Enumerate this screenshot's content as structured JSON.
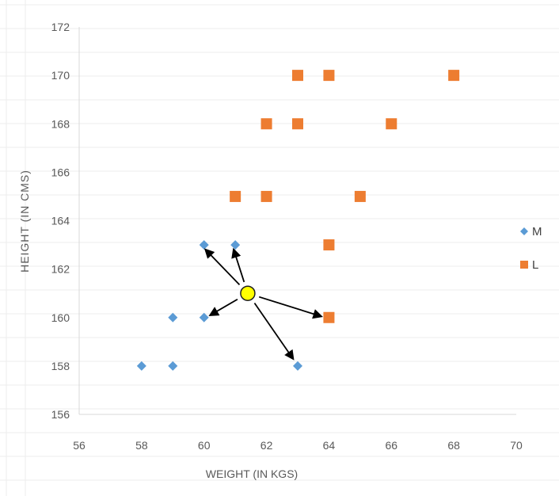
{
  "chart_data": {
    "type": "scatter",
    "title": "",
    "xlabel": "WEIGHT (IN KGS)",
    "ylabel": "HEIGHT (IN CMS)",
    "xlim": [
      56,
      70
    ],
    "ylim": [
      156,
      172
    ],
    "x_ticks": [
      56,
      58,
      60,
      62,
      64,
      66,
      68,
      70
    ],
    "y_ticks": [
      156,
      158,
      160,
      162,
      164,
      166,
      168,
      170,
      172
    ],
    "grid": false,
    "legend_position": "right",
    "series": [
      {
        "name": "M",
        "marker": "diamond",
        "color": "#5B9BD5",
        "points": [
          [
            58,
            158
          ],
          [
            59,
            158
          ],
          [
            59,
            160
          ],
          [
            60,
            160
          ],
          [
            60,
            163
          ],
          [
            61,
            163
          ],
          [
            63,
            158
          ]
        ]
      },
      {
        "name": "L",
        "marker": "square",
        "color": "#ED7D31",
        "points": [
          [
            61,
            165
          ],
          [
            62,
            165
          ],
          [
            62,
            168
          ],
          [
            63,
            168
          ],
          [
            63,
            170
          ],
          [
            64,
            170
          ],
          [
            65,
            165
          ],
          [
            66,
            168
          ],
          [
            68,
            170
          ],
          [
            64,
            163
          ],
          [
            64,
            160
          ]
        ]
      }
    ],
    "query_point": {
      "x": 61.4,
      "y": 161,
      "fill": "#FFFF00",
      "stroke": "#1F1F1F"
    },
    "neighbor_arrows": [
      {
        "to": [
          60.05,
          162.8
        ]
      },
      {
        "to": [
          60.95,
          162.8
        ]
      },
      {
        "to": [
          60.2,
          160.1
        ]
      },
      {
        "to": [
          63.75,
          160.05
        ]
      },
      {
        "to": [
          62.85,
          158.3
        ]
      }
    ]
  }
}
